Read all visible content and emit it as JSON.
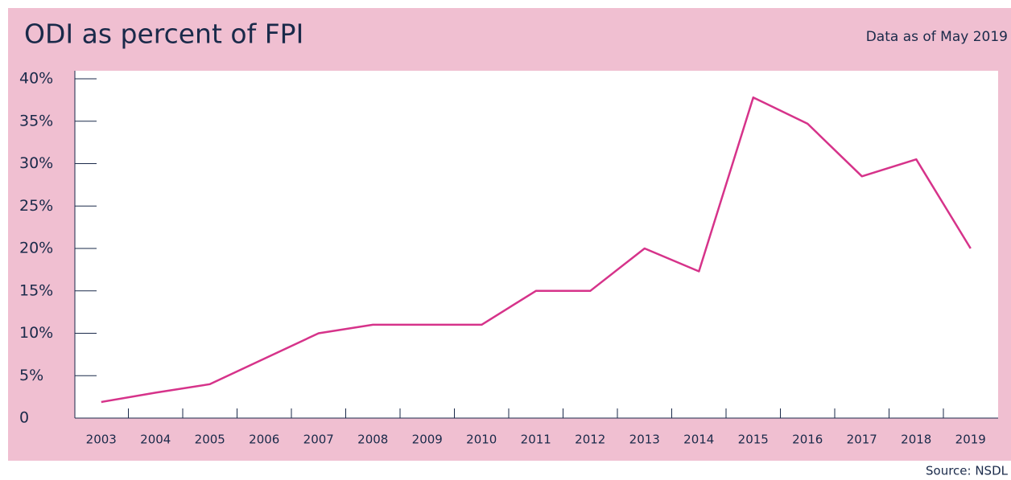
{
  "chart_data": {
    "type": "line",
    "title": "ODI as percent of FPI",
    "subtitle": "Data as of May 2019",
    "source": "Source: NSDL",
    "categories": [
      "2003",
      "2004",
      "2005",
      "2006",
      "2007",
      "2008",
      "2009",
      "2010",
      "2011",
      "2012",
      "2013",
      "2014",
      "2015",
      "2016",
      "2017",
      "2018",
      "2019"
    ],
    "values": [
      1.9,
      3,
      4,
      7,
      10,
      11,
      11,
      11,
      15,
      15,
      20,
      17.3,
      37.8,
      34.7,
      28.5,
      30.5,
      20
    ],
    "color": "#d6338a",
    "ylim": [
      0,
      40
    ],
    "yticks": [
      0,
      {
        "value": 5,
        "label": "5%"
      },
      {
        "value": 10,
        "label": "10%"
      },
      {
        "value": 15,
        "label": "15%"
      },
      {
        "value": 20,
        "label": "20%"
      },
      {
        "value": 25,
        "label": "25%"
      },
      {
        "value": 30,
        "label": "30%"
      },
      {
        "value": 35,
        "label": "35%"
      },
      {
        "value": 40,
        "label": "40%"
      }
    ],
    "grid": false
  }
}
